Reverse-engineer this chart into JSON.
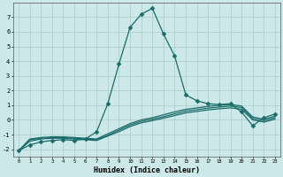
{
  "xlabel": "Humidex (Indice chaleur)",
  "background_color": "#cde8e8",
  "grid_color": "#aacccc",
  "line_color": "#1a6b6b",
  "xlim": [
    -0.5,
    23.5
  ],
  "ylim": [
    -2.5,
    8.0
  ],
  "xtick_labels": [
    "0",
    "1",
    "2",
    "3",
    "4",
    "5",
    "6",
    "7",
    "8",
    "9",
    "10",
    "11",
    "12",
    "13",
    "14",
    "15",
    "16",
    "17",
    "18",
    "19",
    "20",
    "21",
    "22",
    "23"
  ],
  "ytick_values": [
    -2,
    -1,
    0,
    1,
    2,
    3,
    4,
    5,
    6,
    7
  ],
  "series": [
    {
      "x": [
        0,
        1,
        2,
        3,
        4,
        5,
        6,
        7,
        8,
        9,
        10,
        11,
        12,
        13,
        14,
        15,
        16,
        17,
        18,
        19,
        20,
        21,
        22,
        23
      ],
      "y": [
        -2.1,
        -1.7,
        -1.5,
        -1.4,
        -1.35,
        -1.4,
        -1.3,
        -0.8,
        1.1,
        3.8,
        6.3,
        7.2,
        7.6,
        5.85,
        4.35,
        1.7,
        1.3,
        1.1,
        1.05,
        1.1,
        0.55,
        -0.4,
        0.15,
        0.4
      ],
      "marker": "D",
      "markersize": 2.5,
      "lw": 0.9
    },
    {
      "x": [
        0,
        1,
        2,
        3,
        4,
        5,
        6,
        7,
        8,
        9,
        10,
        11,
        12,
        13,
        14,
        15,
        16,
        17,
        18,
        19,
        20,
        21,
        22,
        23
      ],
      "y": [
        -2.1,
        -1.3,
        -1.2,
        -1.15,
        -1.15,
        -1.2,
        -1.25,
        -1.3,
        -0.95,
        -0.6,
        -0.25,
        0.0,
        0.15,
        0.35,
        0.55,
        0.72,
        0.82,
        0.92,
        1.0,
        1.05,
        0.95,
        0.2,
        0.05,
        0.25
      ],
      "marker": null,
      "markersize": 0,
      "lw": 0.9
    },
    {
      "x": [
        0,
        1,
        2,
        3,
        4,
        5,
        6,
        7,
        8,
        9,
        10,
        11,
        12,
        13,
        14,
        15,
        16,
        17,
        18,
        19,
        20,
        21,
        22,
        23
      ],
      "y": [
        -2.1,
        -1.35,
        -1.25,
        -1.2,
        -1.2,
        -1.25,
        -1.3,
        -1.35,
        -1.05,
        -0.7,
        -0.35,
        -0.1,
        0.05,
        0.22,
        0.42,
        0.6,
        0.7,
        0.8,
        0.88,
        0.94,
        0.85,
        0.1,
        -0.05,
        0.15
      ],
      "marker": null,
      "markersize": 0,
      "lw": 0.9
    },
    {
      "x": [
        0,
        1,
        2,
        3,
        4,
        5,
        6,
        7,
        8,
        9,
        10,
        11,
        12,
        13,
        14,
        15,
        16,
        17,
        18,
        19,
        20,
        21,
        22,
        23
      ],
      "y": [
        -2.1,
        -1.45,
        -1.3,
        -1.25,
        -1.25,
        -1.3,
        -1.35,
        -1.4,
        -1.1,
        -0.8,
        -0.45,
        -0.2,
        -0.05,
        0.12,
        0.3,
        0.48,
        0.58,
        0.68,
        0.76,
        0.82,
        0.73,
        0.0,
        -0.15,
        0.05
      ],
      "marker": null,
      "markersize": 0,
      "lw": 0.9
    }
  ]
}
